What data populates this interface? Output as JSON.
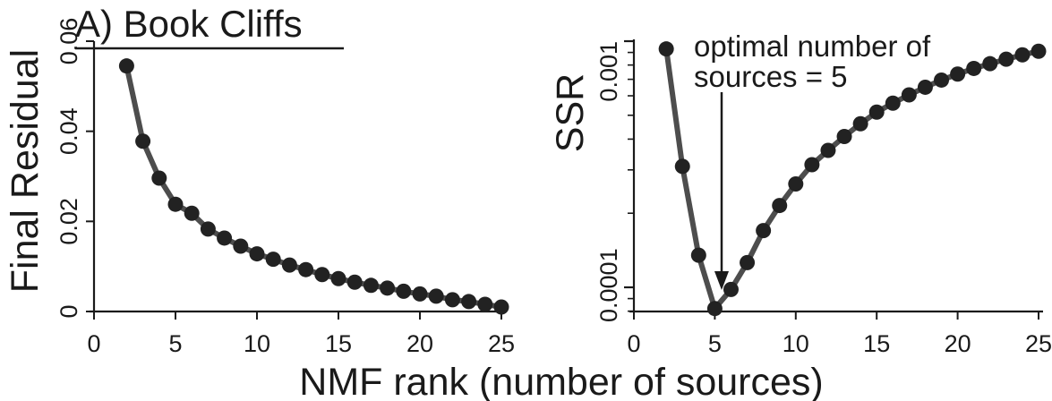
{
  "panel_title": "A) Book Cliffs",
  "shared_xlabel": "NMF rank (number of sources)",
  "annotation": {
    "line1": "optimal number of",
    "line2": "sources = 5"
  },
  "colors": {
    "line": "#4d4d4d",
    "marker": "#222222",
    "axis": "#1a1a1a"
  },
  "chart_data": [
    {
      "type": "line",
      "title": "A) Book Cliffs",
      "xlabel": "NMF rank (number of sources)",
      "ylabel": "Final Residual",
      "xlim": [
        0,
        25
      ],
      "ylim": [
        0,
        0.06
      ],
      "xticks": [
        0,
        5,
        10,
        15,
        20,
        25
      ],
      "xtick_labels": [
        "0",
        "5",
        "10",
        "15",
        "20",
        "25"
      ],
      "yticks": [
        0,
        0.02,
        0.04,
        0.06
      ],
      "ytick_labels": [
        "0",
        "0.02",
        "0.04",
        "0.06"
      ],
      "grid": false,
      "series": [
        {
          "x": [
            2,
            3,
            4,
            5,
            6,
            7,
            8,
            9,
            10,
            11,
            12,
            13,
            14,
            15,
            16,
            17,
            18,
            19,
            20,
            21,
            22,
            23,
            24,
            25
          ],
          "y": [
            0.0545,
            0.0378,
            0.0296,
            0.0238,
            0.0218,
            0.0183,
            0.0163,
            0.0145,
            0.0128,
            0.0116,
            0.0103,
            0.0093,
            0.0082,
            0.0073,
            0.0065,
            0.0058,
            0.0052,
            0.0045,
            0.0039,
            0.0034,
            0.0026,
            0.0022,
            0.0016,
            0.001
          ]
        }
      ]
    },
    {
      "type": "line",
      "xlabel": "NMF rank (number of sources)",
      "ylabel": "SSR",
      "yscale": "log",
      "xlim": [
        0,
        25
      ],
      "ylim": [
        8e-05,
        0.001
      ],
      "xticks": [
        0,
        5,
        10,
        15,
        20,
        25
      ],
      "xtick_labels": [
        "0",
        "5",
        "10",
        "15",
        "20",
        "25"
      ],
      "yticks": [
        0.0001,
        0.001
      ],
      "ytick_labels": [
        "0.0001",
        "0.001"
      ],
      "yminor_ticks": [
        8e-05,
        9e-05,
        0.0002,
        0.0003,
        0.0004,
        0.0005,
        0.0006,
        0.0007,
        0.0008,
        0.0009
      ],
      "grid": false,
      "annotation": {
        "text": [
          "optimal number of",
          "sources = 5"
        ],
        "arrow_to": {
          "x": 5.3,
          "y": 0.0001
        }
      },
      "series": [
        {
          "x": [
            2,
            3,
            4,
            5,
            6,
            7,
            8,
            9,
            10,
            11,
            12,
            13,
            14,
            15,
            16,
            17,
            18,
            19,
            20,
            21,
            22,
            23,
            24,
            25
          ],
          "y": [
            0.00093,
            0.00031,
            0.000135,
            8.2e-05,
            9.8e-05,
            0.000126,
            0.00017,
            0.000215,
            0.000263,
            0.000315,
            0.00036,
            0.00041,
            0.000462,
            0.000515,
            0.00056,
            0.000605,
            0.00065,
            0.000695,
            0.000735,
            0.000775,
            0.00081,
            0.000845,
            0.00088,
            0.00091
          ]
        }
      ]
    }
  ]
}
